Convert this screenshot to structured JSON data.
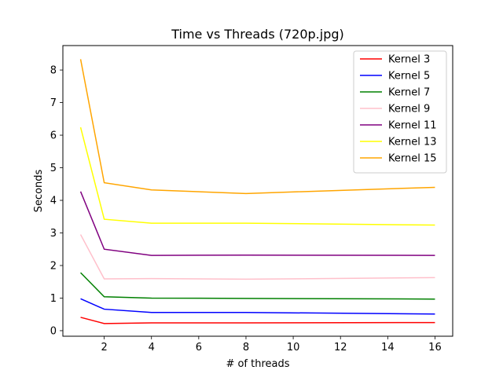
{
  "chart_data": {
    "type": "line",
    "title": "Time vs Threads (720p.jpg)",
    "xlabel": "# of threads",
    "ylabel": "Seconds",
    "xlim": [
      0.25,
      16.75
    ],
    "ylim": [
      -0.17,
      8.75
    ],
    "xticks": [
      2,
      4,
      6,
      8,
      10,
      12,
      14,
      16
    ],
    "yticks": [
      0,
      1,
      2,
      3,
      4,
      5,
      6,
      7,
      8
    ],
    "x": [
      1,
      2,
      4,
      8,
      16
    ],
    "grid": false,
    "legend_position": "top-right",
    "series": [
      {
        "name": "Kernel 3",
        "color": "#ff0000",
        "values": [
          0.41,
          0.22,
          0.24,
          0.24,
          0.25
        ]
      },
      {
        "name": "Kernel 5",
        "color": "#0000ff",
        "values": [
          0.98,
          0.66,
          0.56,
          0.56,
          0.51
        ]
      },
      {
        "name": "Kernel 7",
        "color": "#008000",
        "values": [
          1.78,
          1.04,
          1.0,
          0.99,
          0.97
        ]
      },
      {
        "name": "Kernel 9",
        "color": "#ffc0cb",
        "values": [
          2.95,
          1.59,
          1.6,
          1.58,
          1.63
        ]
      },
      {
        "name": "Kernel 11",
        "color": "#800080",
        "values": [
          4.27,
          2.5,
          2.31,
          2.32,
          2.31
        ]
      },
      {
        "name": "Kernel 13",
        "color": "#ffff00",
        "values": [
          6.24,
          3.42,
          3.3,
          3.3,
          3.24
        ]
      },
      {
        "name": "Kernel 15",
        "color": "#ffa500",
        "values": [
          8.33,
          4.54,
          4.32,
          4.21,
          4.4
        ]
      }
    ]
  }
}
